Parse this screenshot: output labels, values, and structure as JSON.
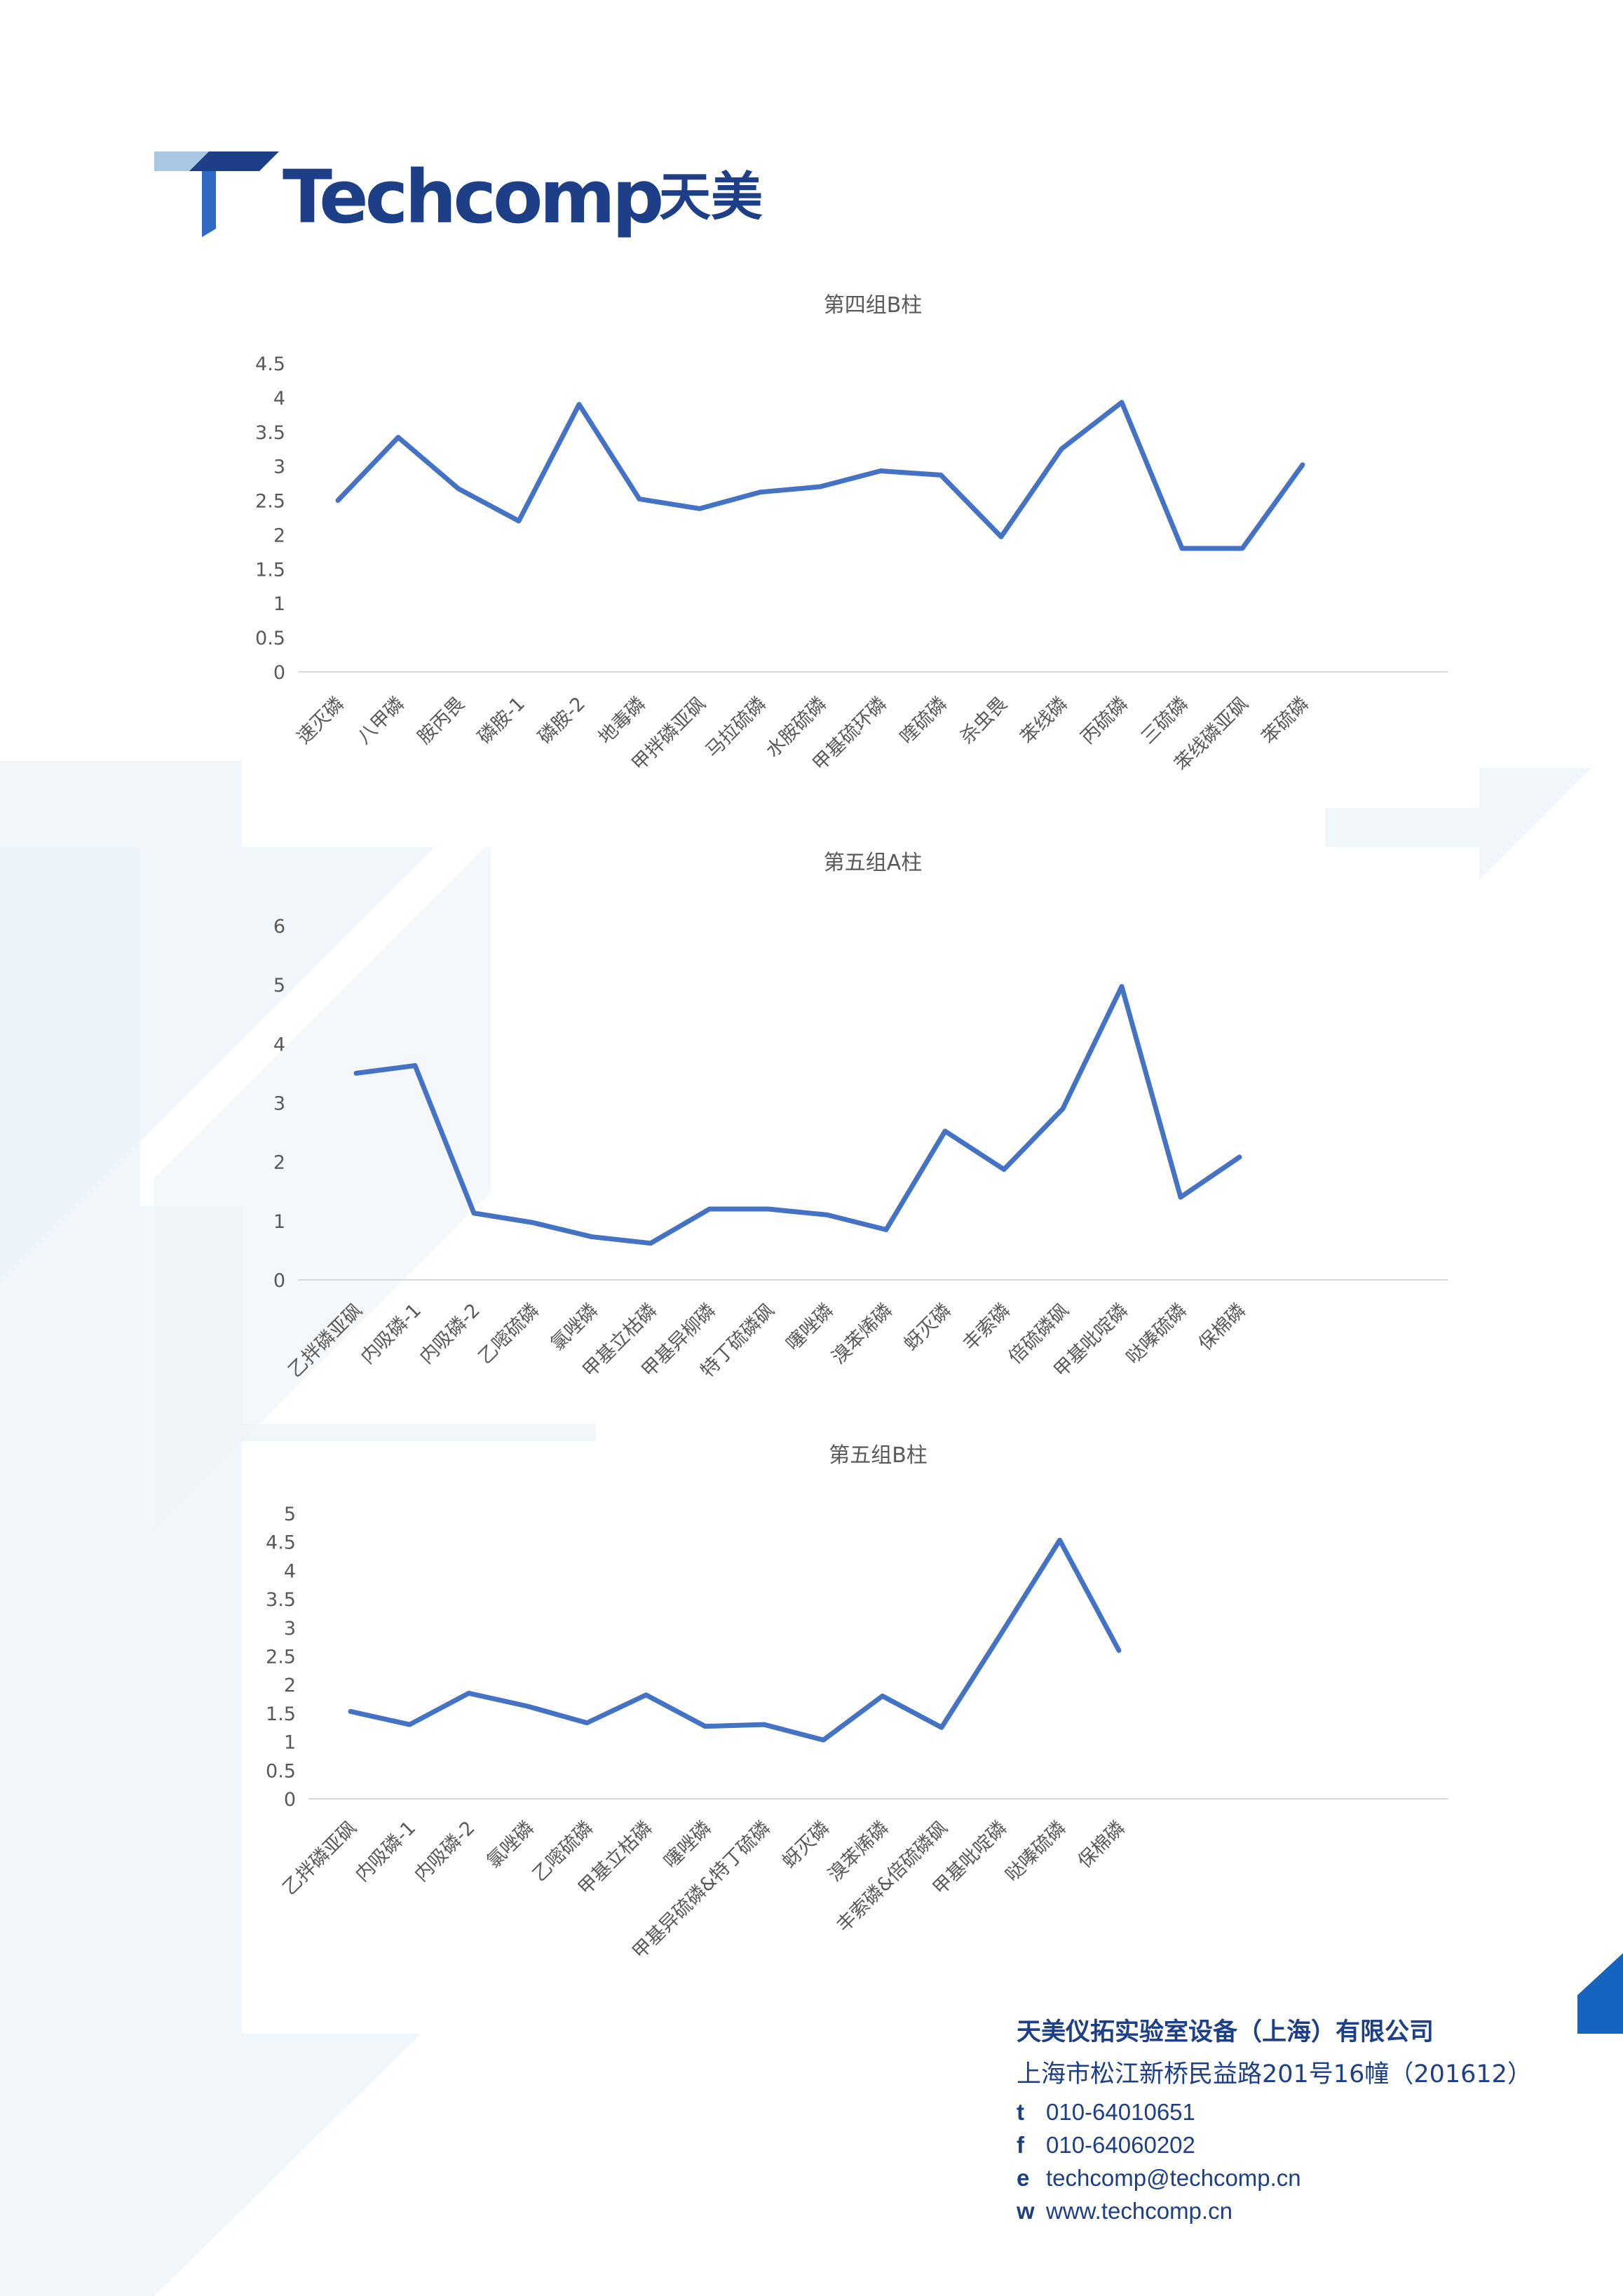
{
  "logo": {
    "brand": "Techcomp",
    "brand_cn": "天美"
  },
  "colors": {
    "line": "#4472c4",
    "brand": "#1d3f87",
    "axis_text": "#595959",
    "title_text": "#595959",
    "grid": "#d9d9d9",
    "deco": "#e9f1f7"
  },
  "chart_data": [
    {
      "type": "line",
      "title": "第四组B柱",
      "categories": [
        "速灭磷",
        "八甲磷",
        "胺丙畏",
        "磷胺-1",
        "磷胺-2",
        "地毒磷",
        "甲拌磷亚砜",
        "马拉硫磷",
        "水胺硫磷",
        "甲基硫环磷",
        "喹硫磷",
        "杀虫畏",
        "苯线磷",
        "丙硫磷",
        "三硫磷",
        "苯线磷亚砜",
        "苯硫磷"
      ],
      "values": [
        2.5,
        3.42,
        2.67,
        2.2,
        3.9,
        2.52,
        2.38,
        2.62,
        2.7,
        2.93,
        2.87,
        1.97,
        3.25,
        3.93,
        1.8,
        1.8,
        3.02
      ],
      "yticks": [
        "0",
        "0.5",
        "1",
        "1.5",
        "2",
        "2.5",
        "3",
        "3.5",
        "4",
        "4.5"
      ],
      "ylim": [
        0,
        4.5
      ]
    },
    {
      "type": "line",
      "title": "第五组A柱",
      "categories": [
        "乙拌磷亚砜",
        "内吸磷-1",
        "内吸磷-2",
        "乙嘧硫磷",
        "氯唑磷",
        "甲基立枯磷",
        "甲基异柳磷",
        "特丁硫磷砜",
        "噻唑磷",
        "溴苯烯磷",
        "蚜灭磷",
        "丰索磷",
        "倍硫磷砜",
        "甲基吡啶磷",
        "哒嗪硫磷",
        "保棉磷"
      ],
      "values": [
        3.5,
        3.63,
        1.13,
        0.97,
        0.73,
        0.62,
        1.2,
        1.2,
        1.1,
        0.85,
        2.52,
        1.87,
        2.9,
        4.97,
        1.4,
        2.08
      ],
      "yticks": [
        "0",
        "1",
        "2",
        "3",
        "4",
        "5",
        "6"
      ],
      "ylim": [
        0,
        6
      ]
    },
    {
      "type": "line",
      "title": "第五组B柱",
      "categories": [
        "乙拌磷亚砜",
        "内吸磷-1",
        "内吸磷-2",
        "氯唑磷",
        "乙嘧硫磷",
        "甲基立枯磷",
        "噻唑磷",
        "甲基异硫磷&特丁硫磷",
        "蚜灭磷",
        "溴苯烯磷",
        "丰索磷&倍硫磷砜",
        "甲基吡啶磷",
        "哒嗪硫磷",
        "保棉磷"
      ],
      "values": [
        1.53,
        1.3,
        1.85,
        1.62,
        1.33,
        1.82,
        1.27,
        1.3,
        1.03,
        1.8,
        1.25,
        2.88,
        4.53,
        2.6
      ],
      "yticks": [
        "0",
        "0.5",
        "1",
        "1.5",
        "2",
        "2.5",
        "3",
        "3.5",
        "4",
        "4.5",
        "5"
      ],
      "ylim": [
        0,
        5
      ]
    }
  ],
  "footer": {
    "company": "天美仪拓实验室设备（上海）有限公司",
    "address": "上海市松江新桥民益路201号16幢（201612）",
    "contacts": [
      {
        "key": "t",
        "value": "010-64010651"
      },
      {
        "key": "f",
        "value": "010-64060202"
      },
      {
        "key": "e",
        "value": "techcomp@techcomp.cn"
      },
      {
        "key": "w",
        "value": "www.techcomp.cn"
      }
    ]
  }
}
